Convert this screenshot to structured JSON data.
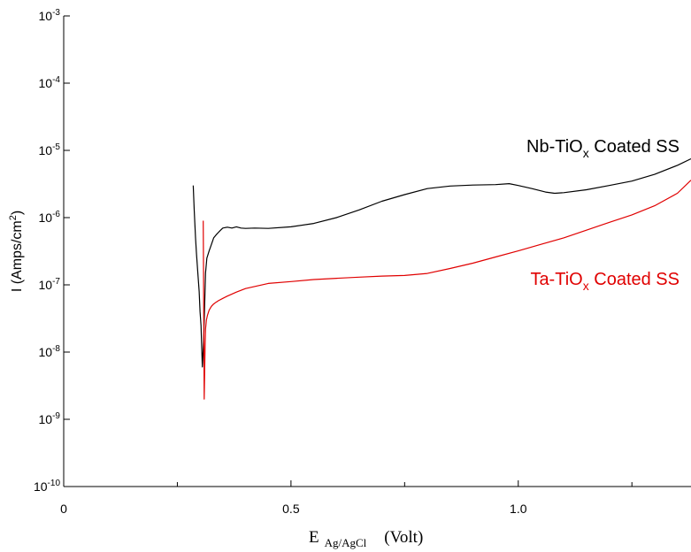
{
  "chart_data": {
    "type": "line",
    "title": "",
    "xlabel": {
      "main": "E",
      "subscript": "Ag/AgCl",
      "unit": "(Volt)"
    },
    "ylabel": {
      "prefix": "I (Amps/cm",
      "sup": "2",
      "suffix": ")"
    },
    "xlim": [
      0,
      1.38
    ],
    "ylim": [
      1e-10,
      0.001
    ],
    "yscale": "log",
    "grid": false,
    "x_ticks": [
      {
        "value": 0,
        "label": "0"
      },
      {
        "value": 0.5,
        "label": "0.5"
      },
      {
        "value": 1.0,
        "label": "1.0"
      }
    ],
    "y_ticks": [
      {
        "exp": -3,
        "base": "10",
        "sup": "-3"
      },
      {
        "exp": -4,
        "base": "10",
        "sup": "-4"
      },
      {
        "exp": -5,
        "base": "10",
        "sup": "-5"
      },
      {
        "exp": -6,
        "base": "10",
        "sup": "-6"
      },
      {
        "exp": -7,
        "base": "10",
        "sup": "-7"
      },
      {
        "exp": -8,
        "base": "10",
        "sup": "-8"
      },
      {
        "exp": -9,
        "base": "10",
        "sup": "-9"
      },
      {
        "exp": -10,
        "base": "10",
        "sup": "-10"
      }
    ],
    "series": [
      {
        "name": "Nb-TiOx Coated SS",
        "color": "#000000",
        "label": {
          "before": "Nb-TiO",
          "sub": "x",
          "after": " Coated SS"
        },
        "x": [
          0.285,
          0.287,
          0.29,
          0.292,
          0.295,
          0.298,
          0.3,
          0.302,
          0.305,
          0.308,
          0.31,
          0.312,
          0.315,
          0.32,
          0.325,
          0.33,
          0.335,
          0.34,
          0.345,
          0.35,
          0.36,
          0.37,
          0.38,
          0.39,
          0.4,
          0.42,
          0.45,
          0.5,
          0.55,
          0.6,
          0.65,
          0.7,
          0.75,
          0.8,
          0.85,
          0.9,
          0.95,
          0.98,
          1.0,
          1.03,
          1.06,
          1.08,
          1.1,
          1.15,
          1.2,
          1.25,
          1.3,
          1.35,
          1.38
        ],
        "y": [
          3e-06,
          1.3e-06,
          5e-07,
          3e-07,
          1.5e-07,
          8e-08,
          4e-08,
          2.5e-08,
          6e-09,
          1.5e-08,
          5e-08,
          1.5e-07,
          2.5e-07,
          3.2e-07,
          4e-07,
          5e-07,
          5.5e-07,
          6e-07,
          6.5e-07,
          7e-07,
          7.2e-07,
          7e-07,
          7.3e-07,
          7e-07,
          6.9e-07,
          7e-07,
          6.9e-07,
          7.3e-07,
          8.2e-07,
          1e-06,
          1.3e-06,
          1.75e-06,
          2.2e-06,
          2.7e-06,
          2.95e-06,
          3.05e-06,
          3.1e-06,
          3.2e-06,
          3e-06,
          2.7e-06,
          2.4e-06,
          2.3e-06,
          2.35e-06,
          2.6e-06,
          3e-06,
          3.5e-06,
          4.4e-06,
          6e-06,
          7.5e-06
        ]
      },
      {
        "name": "Ta-TiOx Coated SS",
        "color": "#e00000",
        "label": {
          "before": "Ta-TiO",
          "sub": "x",
          "after": " Coated SS"
        },
        "x": [
          0.307,
          0.3075,
          0.308,
          0.309,
          0.31,
          0.311,
          0.312,
          0.314,
          0.316,
          0.32,
          0.325,
          0.33,
          0.335,
          0.34,
          0.35,
          0.36,
          0.38,
          0.4,
          0.45,
          0.5,
          0.55,
          0.6,
          0.65,
          0.7,
          0.75,
          0.8,
          0.85,
          0.9,
          0.95,
          1.0,
          1.05,
          1.1,
          1.15,
          1.2,
          1.25,
          1.3,
          1.35,
          1.38
        ],
        "y": [
          9e-07,
          2e-07,
          5e-08,
          2e-09,
          5e-09,
          1.2e-08,
          2.2e-08,
          3e-08,
          3.5e-08,
          4.2e-08,
          4.8e-08,
          5.2e-08,
          5.5e-08,
          5.8e-08,
          6.3e-08,
          6.8e-08,
          7.8e-08,
          8.8e-08,
          1.05e-07,
          1.12e-07,
          1.2e-07,
          1.25e-07,
          1.3e-07,
          1.35e-07,
          1.38e-07,
          1.48e-07,
          1.75e-07,
          2.1e-07,
          2.6e-07,
          3.2e-07,
          4e-07,
          5e-07,
          6.5e-07,
          8.5e-07,
          1.1e-06,
          1.5e-06,
          2.3e-06,
          3.6e-06
        ]
      }
    ]
  }
}
